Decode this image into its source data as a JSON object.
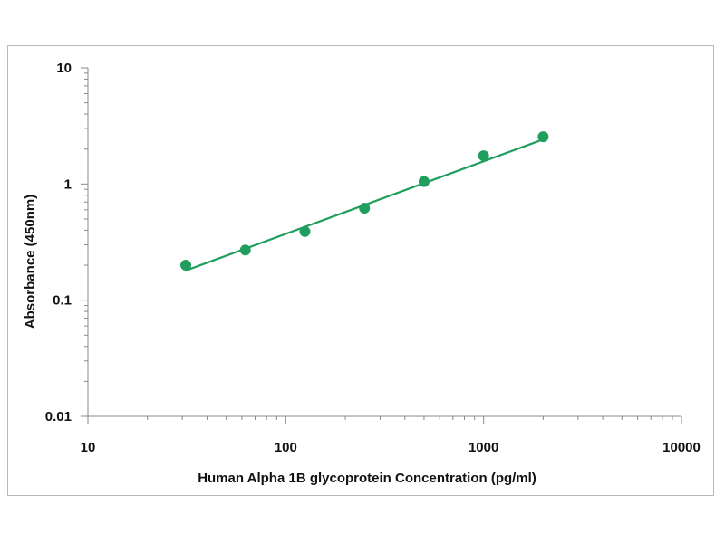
{
  "chart_data": {
    "type": "scatter",
    "title": "",
    "xlabel": "Human Alpha 1B glycoprotein Concentration (pg/ml)",
    "ylabel": "Absorbance (450nm)",
    "x_scale": "log",
    "y_scale": "log",
    "xlim": [
      10,
      10000
    ],
    "ylim": [
      0.01,
      10
    ],
    "x_ticks": [
      10,
      100,
      1000,
      10000
    ],
    "x_tick_labels": [
      "10",
      "100",
      "1000",
      "10000"
    ],
    "y_ticks": [
      0.01,
      0.1,
      1,
      10
    ],
    "y_tick_labels": [
      "0.01",
      "0.1",
      "1",
      "10"
    ],
    "grid": false,
    "legend": "none",
    "series": [
      {
        "x": [
          31.25,
          62.5,
          125,
          250,
          500,
          1000,
          2000
        ],
        "y": [
          0.2,
          0.27,
          0.39,
          0.62,
          1.05,
          1.75,
          2.55
        ],
        "color": "#1f9e5e"
      }
    ],
    "trendline": {
      "type": "power",
      "x": [
        31.25,
        2000
      ],
      "y": [
        0.18,
        2.42
      ],
      "color": "#1f9e5e"
    }
  }
}
